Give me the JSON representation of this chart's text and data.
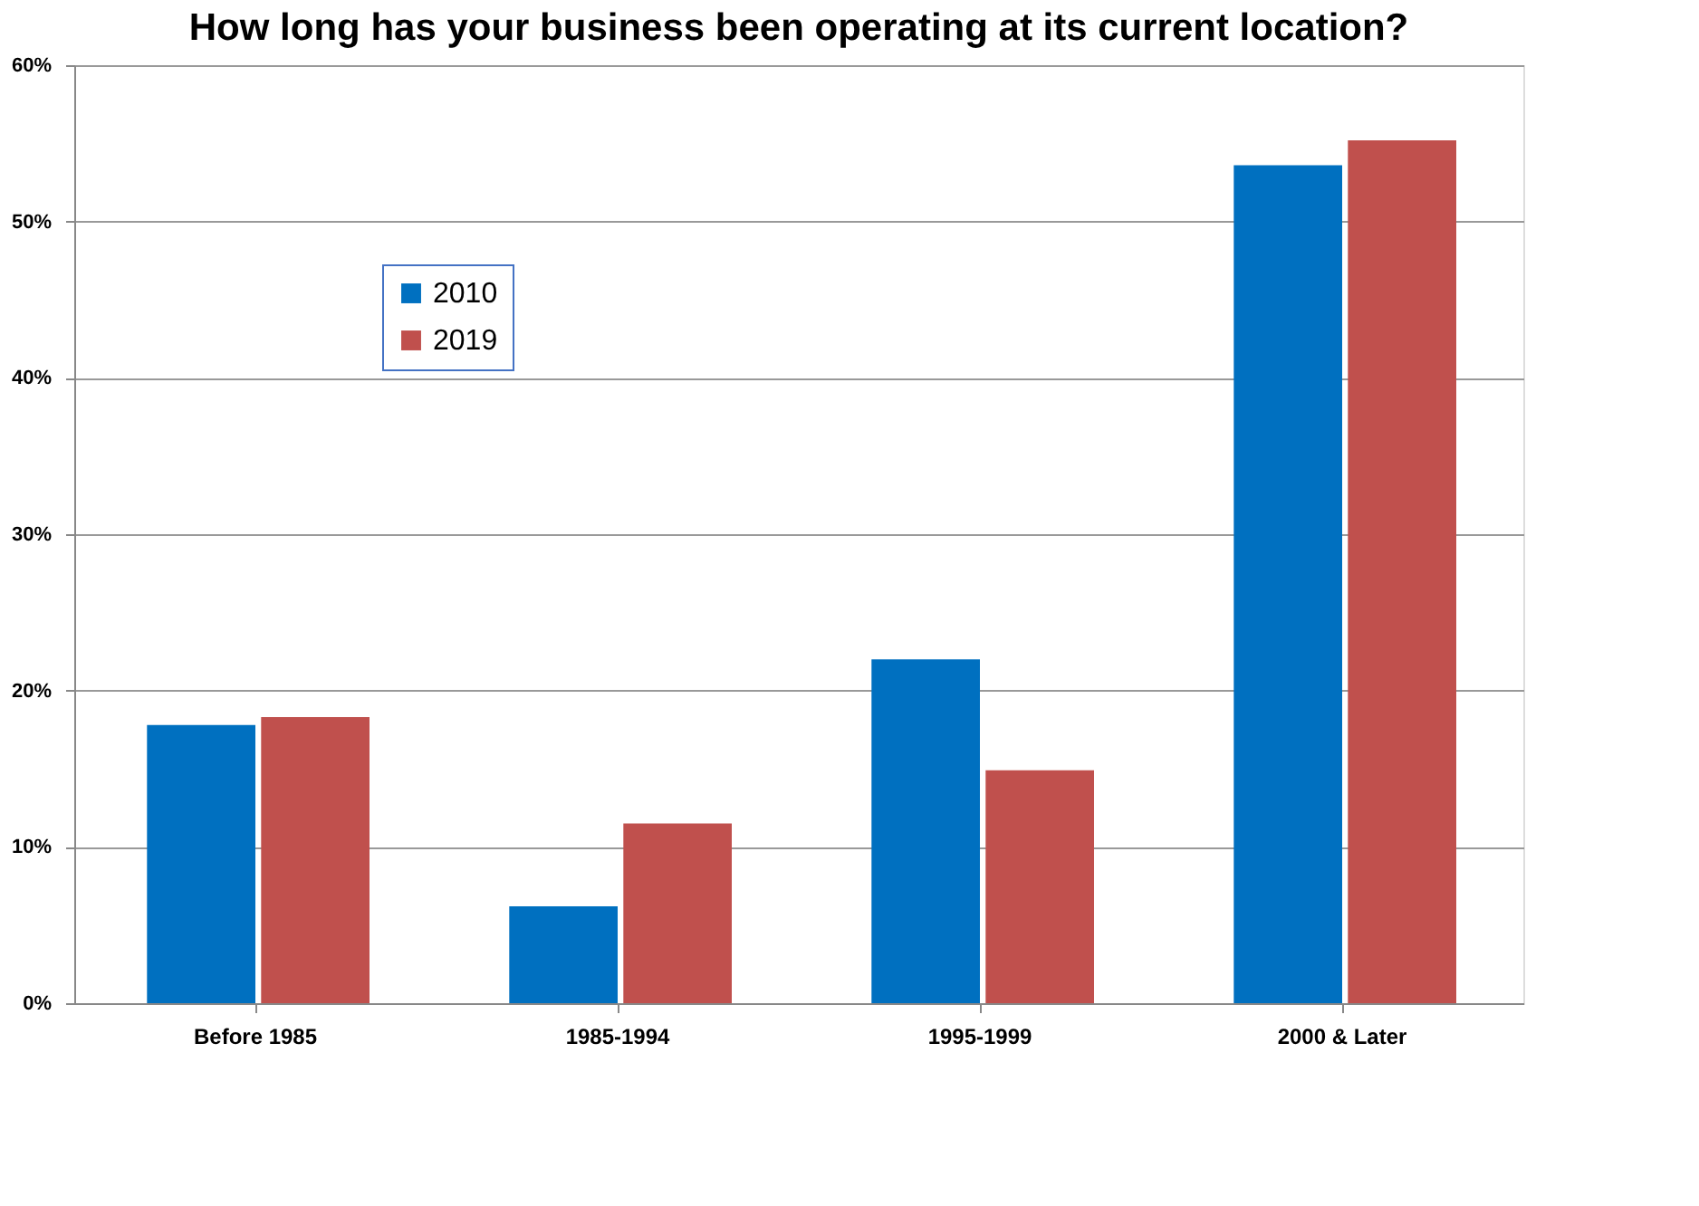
{
  "chart_data": {
    "type": "bar",
    "title": "How long has your business been operating at its current location?",
    "categories": [
      "Before 1985",
      "1985-1994",
      "1995-1999",
      "2000 & Later"
    ],
    "series": [
      {
        "name": "2010",
        "color": "#0070c0",
        "values": [
          17.8,
          6.2,
          22.0,
          53.6
        ]
      },
      {
        "name": "2019",
        "color": "#c0504d",
        "values": [
          18.3,
          11.5,
          14.9,
          55.2
        ]
      }
    ],
    "ylim": [
      0,
      60
    ],
    "yticks": [
      {
        "value": 0,
        "label": "0%"
      },
      {
        "value": 10,
        "label": "10%"
      },
      {
        "value": 20,
        "label": "20%"
      },
      {
        "value": 30,
        "label": "30%"
      },
      {
        "value": 40,
        "label": "40%"
      },
      {
        "value": 50,
        "label": "50%"
      },
      {
        "value": 60,
        "label": "60%"
      }
    ],
    "grid": "y",
    "legend": "top left"
  }
}
